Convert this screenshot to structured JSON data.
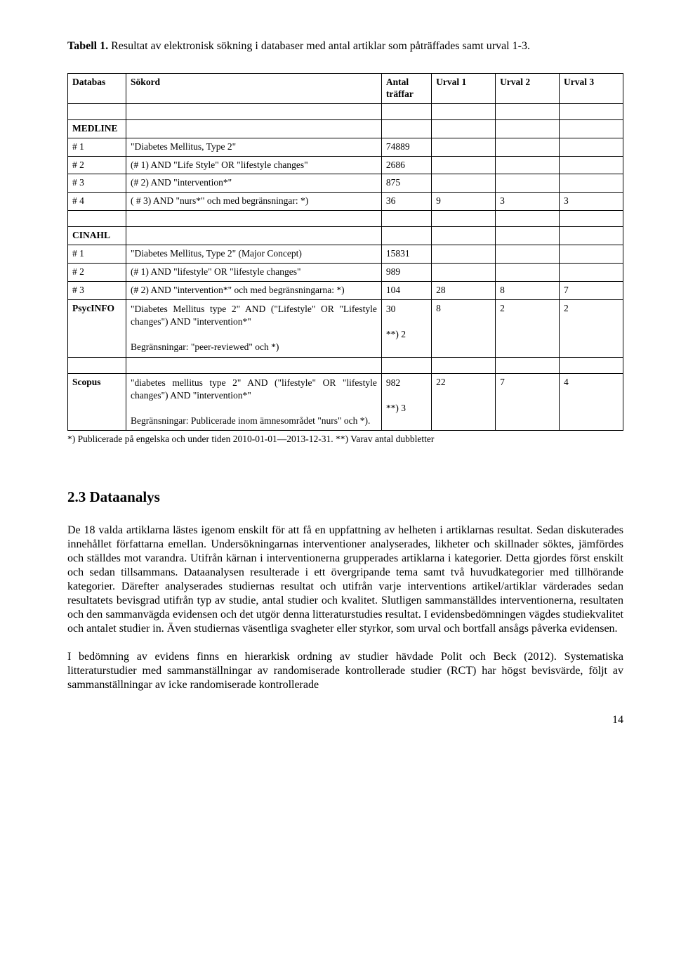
{
  "caption": {
    "bold": "Tabell 1.",
    "rest": " Resultat av elektronisk sökning i databaser med antal artiklar som påträffades samt urval 1-3."
  },
  "table": {
    "headers": [
      "Databas",
      "Sökord",
      "Antal träffar",
      "Urval 1",
      "Urval 2",
      "Urval 3"
    ],
    "sections": [
      {
        "name": "MEDLINE",
        "rows": [
          [
            "# 1",
            "\"Diabetes Mellitus, Type 2\"",
            "74889",
            "",
            "",
            ""
          ],
          [
            "# 2",
            "(# 1) AND \"Life Style\" OR \"lifestyle changes\"",
            "2686",
            "",
            "",
            ""
          ],
          [
            "# 3",
            "(# 2) AND \"intervention*\"",
            "875",
            "",
            "",
            ""
          ],
          [
            "# 4",
            "( # 3) AND \"nurs*\" och med begränsningar: *)",
            "36",
            "9",
            "3",
            "3"
          ]
        ]
      },
      {
        "name": "CINAHL",
        "rows": [
          [
            "# 1",
            "\"Diabetes Mellitus, Type 2\" (Major Concept)",
            "15831",
            "",
            "",
            ""
          ],
          [
            "# 2",
            "(# 1) AND \"lifestyle\" OR \"lifestyle changes\"",
            "989",
            "",
            "",
            ""
          ],
          [
            "# 3",
            "(# 2) AND \"intervention*\" och med begränsningarna: *)",
            "104",
            "28",
            "8",
            "7"
          ],
          [
            "PsycINFO",
            "\"Diabetes Mellitus type 2\" AND (\"Lifestyle\" OR \"Lifestyle changes\") AND \"intervention*\"\n\nBegränsningar: \"peer-reviewed\" och *)",
            "30\n\n**) 2",
            "8",
            "2",
            "2"
          ]
        ]
      },
      {
        "name": "",
        "rows": [
          [
            "Scopus",
            "\"diabetes mellitus type 2\" AND (\"lifestyle\" OR \"lifestyle changes\") AND \"intervention*\"\n\nBegränsningar: Publicerade inom ämnesområdet \"nurs\" och *).",
            "982\n\n**) 3",
            "22",
            "7",
            "4"
          ]
        ]
      }
    ]
  },
  "footnote": "*) Publicerade på engelska och under tiden 2010-01-01—2013-12-31. **) Varav antal dubbletter",
  "section_heading": "2.3 Dataanalys",
  "para1": "De 18 valda artiklarna lästes igenom enskilt för att få en uppfattning av helheten i artiklarnas resultat. Sedan diskuterades innehållet författarna emellan. Undersökningarnas interventioner analyserades, likheter och skillnader söktes, jämfördes och ställdes mot varandra. Utifrån kärnan i interventionerna grupperades artiklarna i kategorier. Detta gjordes först enskilt och sedan tillsammans. Dataanalysen resulterade i ett övergripande tema samt två huvudkategorier med tillhörande kategorier. Därefter analyserades studiernas resultat och utifrån varje interventions artikel/artiklar värderades sedan resultatets bevisgrad utifrån typ av studie, antal studier och kvalitet. Slutligen sammanställdes interventionerna, resultaten och den sammanvägda evidensen och det utgör denna litteraturstudies resultat. I evidensbedömningen vägdes studiekvalitet och antalet studier in. Även studiernas väsentliga svagheter eller styrkor, som urval och bortfall ansågs påverka evidensen.",
  "para2": "I bedömning av evidens finns en hierarkisk ordning av studier hävdade Polit och Beck (2012). Systematiska litteraturstudier med sammanställningar av randomiserade kontrollerade studier (RCT) har högst bevisvärde, följt av sammanställningar av icke randomiserade kontrollerade",
  "page_number": "14"
}
